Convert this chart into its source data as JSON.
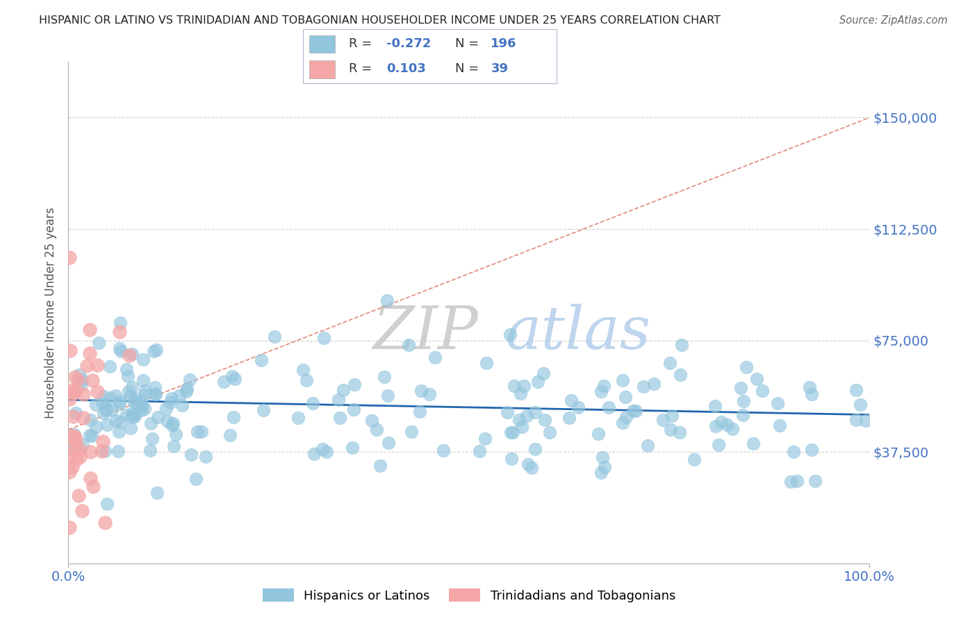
{
  "title": "HISPANIC OR LATINO VS TRINIDADIAN AND TOBAGONIAN HOUSEHOLDER INCOME UNDER 25 YEARS CORRELATION CHART",
  "source": "Source: ZipAtlas.com",
  "ylabel": "Householder Income Under 25 years",
  "xlim": [
    0,
    100
  ],
  "ylim": [
    0,
    168750
  ],
  "yticks": [
    0,
    37500,
    75000,
    112500,
    150000
  ],
  "ytick_labels": [
    "",
    "$37,500",
    "$75,000",
    "$112,500",
    "$150,000"
  ],
  "xtick_labels": [
    "0.0%",
    "100.0%"
  ],
  "r_blue": -0.272,
  "n_blue": 196,
  "r_pink": 0.103,
  "n_pink": 39,
  "blue_color": "#92c5de",
  "pink_color": "#f4a6a6",
  "blue_line_color": "#2166ac",
  "pink_line_color": "#d6604d",
  "axis_color": "#4472c4",
  "legend_label_blue": "Hispanics or Latinos",
  "legend_label_pink": "Trinidadians and Tobagonians",
  "watermark_zip": "ZIP",
  "watermark_atlas": "atlas",
  "blue_intercept": 55000,
  "blue_slope": -50,
  "pink_intercept": 45000,
  "pink_slope": 1050
}
